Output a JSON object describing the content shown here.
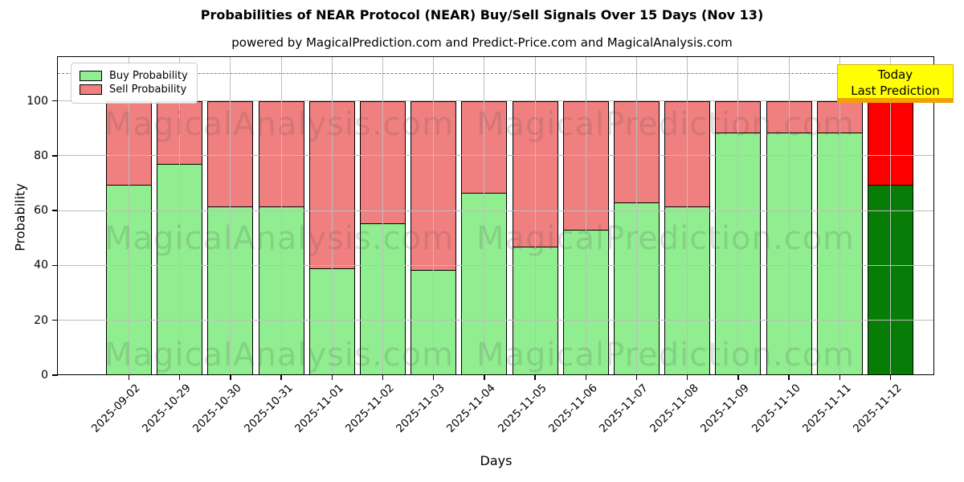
{
  "chart_data": {
    "type": "bar",
    "stacked": true,
    "title": "Probabilities of NEAR Protocol (NEAR) Buy/Sell Signals Over 15 Days (Nov 13)",
    "subtitle": "powered by MagicalPrediction.com and Predict-Price.com and MagicalAnalysis.com",
    "xlabel": "Days",
    "ylabel": "Probability",
    "ylim": [
      0,
      116
    ],
    "yticks": [
      0,
      20,
      40,
      60,
      80,
      100
    ],
    "dashed_line_y": 110,
    "grid": true,
    "legend_position": "upper left",
    "categories": [
      "2025-09-02",
      "2025-10-29",
      "2025-10-30",
      "2025-10-31",
      "2025-11-01",
      "2025-11-02",
      "2025-11-03",
      "2025-11-04",
      "2025-11-05",
      "2025-11-06",
      "2025-11-07",
      "2025-11-08",
      "2025-11-09",
      "2025-11-10",
      "2025-11-11",
      "2025-11-12"
    ],
    "series": [
      {
        "name": "Buy Probability",
        "color": "#90ee90",
        "values": [
          69.5,
          77,
          61.5,
          61.5,
          39,
          55.5,
          38.5,
          66.5,
          47,
          53,
          63,
          61.5,
          88.5,
          88.5,
          88.5,
          69.5
        ]
      },
      {
        "name": "Sell Probability",
        "color": "#f08080",
        "values": [
          30.5,
          23,
          38.5,
          38.5,
          61,
          44.5,
          61.5,
          33.5,
          53,
          47,
          37,
          38.5,
          11.5,
          11.5,
          11.5,
          30.5
        ]
      }
    ],
    "today_bar": {
      "index": 15,
      "buy_color": "#077d07",
      "sell_color": "#ff0000"
    }
  },
  "today_box": {
    "line1": "Today",
    "line2": "Last Prediction",
    "bg": "#ffff00",
    "border_color": "#cdb500",
    "shadow_color": "#f0a202"
  },
  "watermarks": {
    "left": "MagicalAnalysis.com",
    "right": "MagicalPrediction.com"
  }
}
